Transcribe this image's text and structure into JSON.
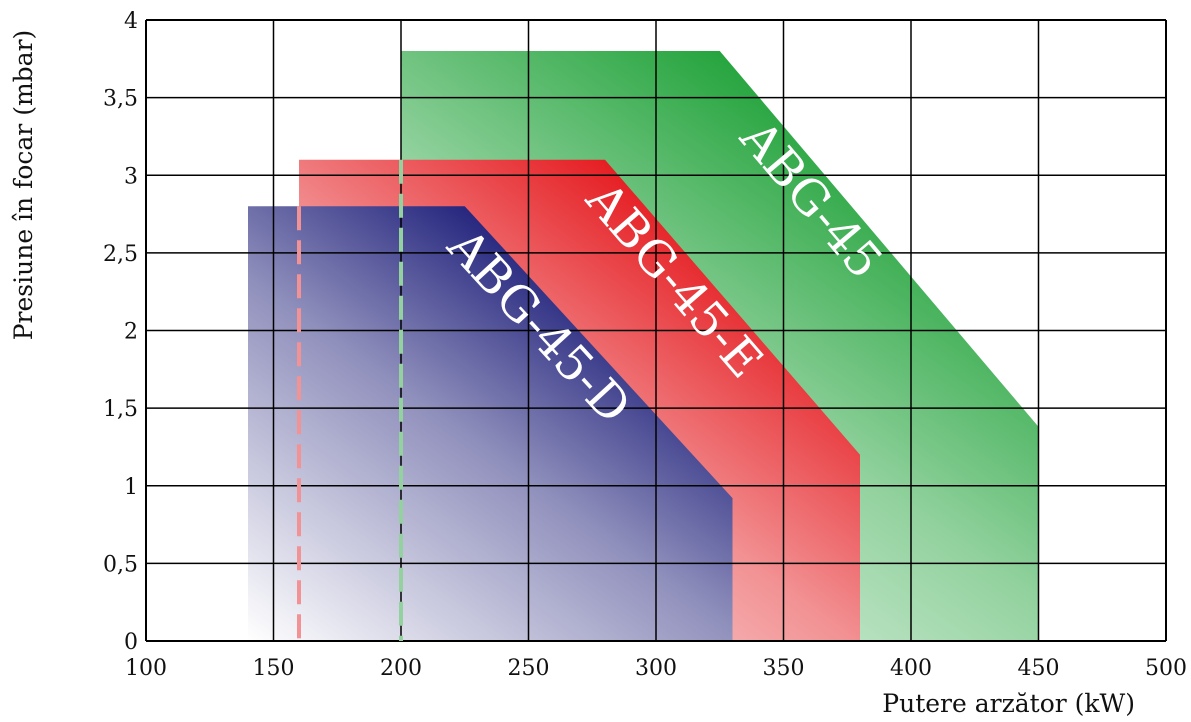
{
  "chart_data": {
    "type": "area",
    "title": "",
    "xlabel": "Putere arzător (kW)",
    "ylabel": "Presiune în focar (mbar)",
    "xlim": [
      100,
      500
    ],
    "ylim": [
      0,
      4
    ],
    "grid": true,
    "x_ticks": [
      100,
      150,
      200,
      250,
      300,
      350,
      400,
      450,
      500
    ],
    "x_tick_labels": [
      "100",
      "150",
      "200",
      "250",
      "300",
      "350",
      "400",
      "450",
      "500"
    ],
    "y_ticks": [
      0,
      0.5,
      1,
      1.5,
      2,
      2.5,
      3,
      3.5,
      4
    ],
    "y_tick_labels": [
      "0",
      "0,5",
      "1",
      "1,5",
      "2",
      "2,5",
      "3",
      "3,5",
      "4"
    ],
    "series": [
      {
        "name": "ABG-45",
        "color": "#0f9b2a",
        "polygon": [
          [
            200,
            0
          ],
          [
            200,
            3.8
          ],
          [
            325,
            3.8
          ],
          [
            450,
            1.38
          ],
          [
            450,
            0
          ]
        ]
      },
      {
        "name": "ABG-45-E",
        "color": "#e30d12",
        "polygon": [
          [
            160,
            0
          ],
          [
            160,
            3.1
          ],
          [
            280,
            3.1
          ],
          [
            380,
            1.2
          ],
          [
            380,
            0
          ]
        ]
      },
      {
        "name": "ABG-45-D",
        "color": "#05066b",
        "polygon": [
          [
            140,
            0
          ],
          [
            140,
            2.8
          ],
          [
            225,
            2.8
          ],
          [
            330,
            0.92
          ],
          [
            330,
            0
          ]
        ]
      }
    ]
  }
}
